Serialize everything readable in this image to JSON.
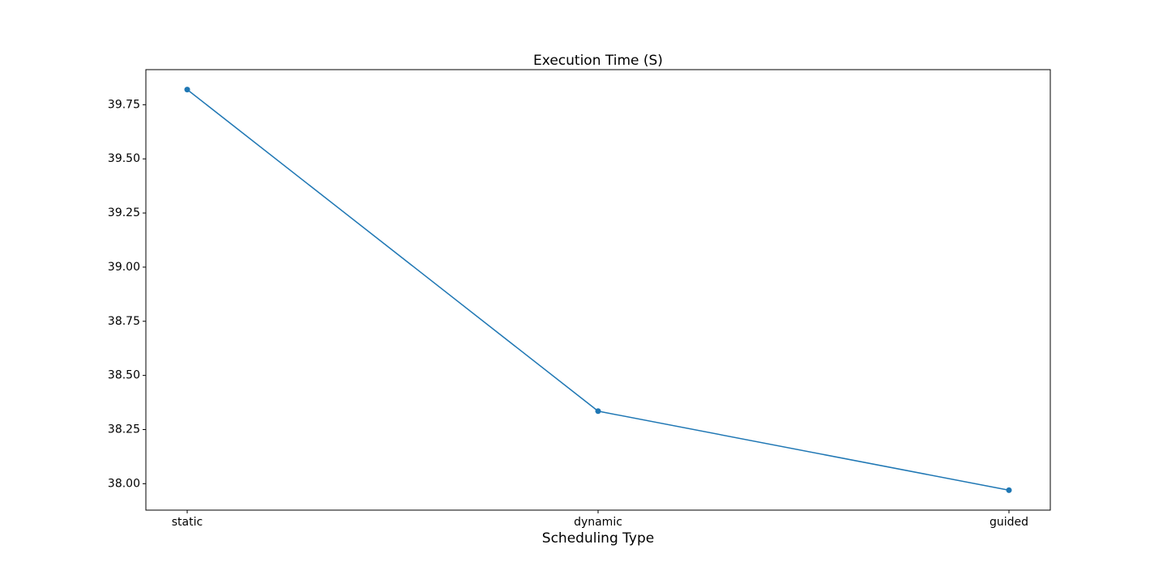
{
  "chart_data": {
    "type": "line",
    "title": "Execution Time (S)",
    "xlabel": "Scheduling Type",
    "ylabel": "",
    "categories": [
      "static",
      "dynamic",
      "guided"
    ],
    "series": [
      {
        "values": [
          39.82,
          38.335,
          37.97
        ],
        "color": "#1f77b4",
        "marker": "circle"
      }
    ],
    "yticks": [
      38.0,
      38.25,
      38.5,
      38.75,
      39.0,
      39.25,
      39.5,
      39.75
    ],
    "ytick_labels": [
      "38.00",
      "38.25",
      "38.50",
      "38.75",
      "39.00",
      "39.25",
      "39.50",
      "39.75"
    ],
    "ylim": [
      37.878,
      39.912
    ],
    "grid": false,
    "legend": false
  }
}
